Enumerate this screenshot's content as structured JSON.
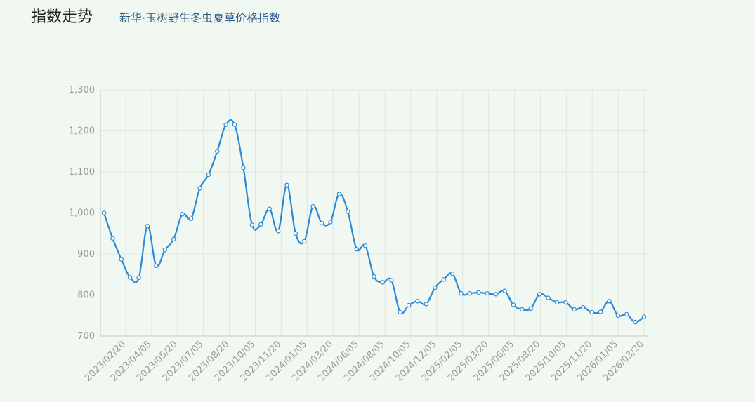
{
  "header": {
    "title": "指数走势",
    "subtitle": "新华·玉树野生冬虫夏草价格指数"
  },
  "colors": {
    "background": "#f1f7f1",
    "line": "#2b8ad6",
    "grid": "#dfe8df"
  },
  "chart_data": {
    "type": "line",
    "title": "",
    "xlabel": "",
    "ylabel": "",
    "ylim": [
      700,
      1300
    ],
    "yticks": [
      700,
      800,
      900,
      1000,
      1100,
      1200,
      1300
    ],
    "ytick_labels": [
      "700",
      "800",
      "900",
      "1,000",
      "1,100",
      "1,200",
      "1,300"
    ],
    "grid": true,
    "x_tick_labels": [
      "2023/02/20",
      "2023/04/05",
      "2023/05/20",
      "2023/07/05",
      "2023/08/20",
      "2023/10/05",
      "2023/11/20",
      "2024/01/05",
      "2024/03/20",
      "2024/06/05",
      "2024/08/05",
      "2024/10/05",
      "2024/12/05",
      "2025/02/05",
      "2025/03/20",
      "2025/06/05",
      "2025/08/20",
      "2025/10/05",
      "2025/11/20",
      "2026/01/05",
      "2026/03/20"
    ],
    "series": [
      {
        "values": [
          1000,
          938,
          887,
          843,
          842,
          968,
          871,
          910,
          936,
          997,
          986,
          1060,
          1093,
          1150,
          1215,
          1215,
          1110,
          971,
          972,
          1010,
          956,
          1068,
          950,
          931,
          1016,
          975,
          978,
          1046,
          1003,
          912,
          920,
          845,
          831,
          836,
          758,
          775,
          785,
          778,
          818,
          838,
          852,
          804,
          804,
          806,
          804,
          802,
          810,
          776,
          765,
          767,
          802,
          793,
          782,
          782,
          765,
          770,
          758,
          759,
          785,
          750,
          753,
          734,
          747
        ]
      }
    ]
  }
}
